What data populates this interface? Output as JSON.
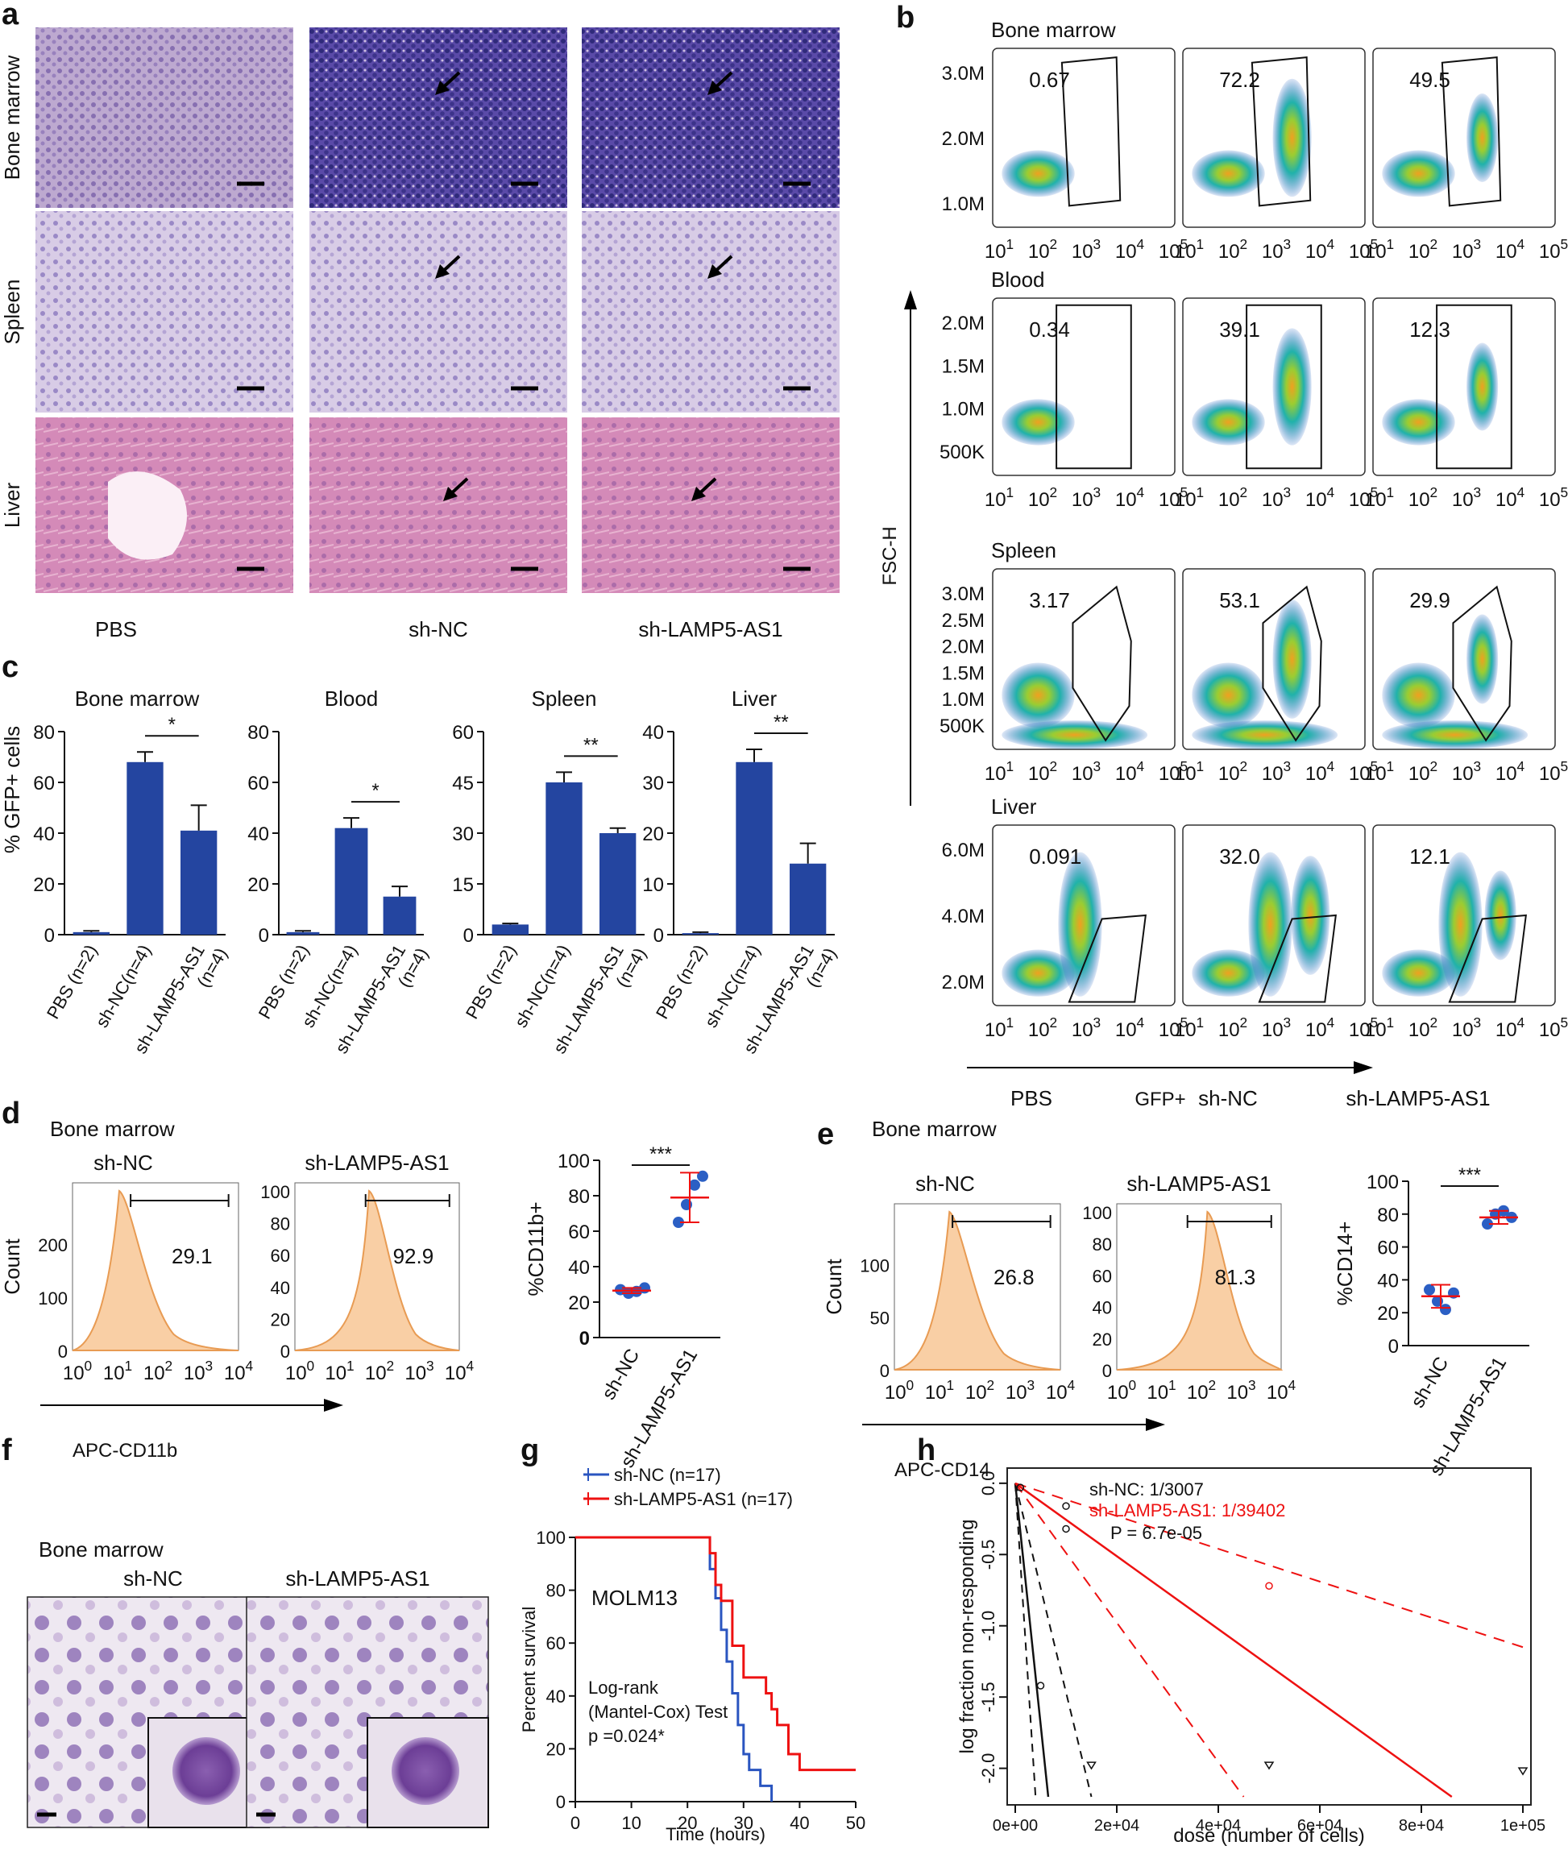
{
  "panels": {
    "a": "a",
    "b": "b",
    "c": "c",
    "d": "d",
    "e": "e",
    "f": "f",
    "g": "g",
    "h": "h"
  },
  "colors": {
    "bar": "#2445a0",
    "pbs_tissue": "#b9a3cc",
    "liver": "#d07fae",
    "hist": "#f9cfa5",
    "hist_line": "#e89b53",
    "red": "#e11",
    "blue": "#2a55c0",
    "dot": "#2b5fc4"
  },
  "a": {
    "rows": [
      "Bone marrow",
      "Spleen",
      "Liver"
    ],
    "cols": [
      "PBS",
      "sh-NC",
      "sh-LAMP5-AS1"
    ]
  },
  "b": {
    "groups": [
      {
        "title": "Bone marrow",
        "yticks": [
          "3.0M",
          "2.0M",
          "1.0M"
        ],
        "values": [
          "0.67",
          "72.2",
          "49.5"
        ]
      },
      {
        "title": "Blood",
        "yticks": [
          "2.0M",
          "1.5M",
          "1.0M",
          "500K"
        ],
        "values": [
          "0.34",
          "39.1",
          "12.3"
        ]
      },
      {
        "title": "Spleen",
        "yticks": [
          "3.0M",
          "2.5M",
          "2.0M",
          "1.5M",
          "1.0M",
          "500K"
        ],
        "values": [
          "3.17",
          "53.1",
          "29.9"
        ]
      },
      {
        "title": "Liver",
        "yticks": [
          "6.0M",
          "4.0M",
          "2.0M"
        ],
        "values": [
          "0.091",
          "32.0",
          "12.1"
        ]
      }
    ],
    "xticks": [
      "1",
      "2",
      "3",
      "4",
      "5"
    ],
    "tick_base": "10",
    "ylabel": "FSC-H",
    "xlabel": "GFP+",
    "cols": [
      "PBS",
      "sh-NC",
      "sh-LAMP5-AS1"
    ]
  },
  "c": {
    "ylabel": "% GFP+ cells",
    "categories": [
      "PBS (n=2)",
      "sh-NC(n=4)",
      "sh-LAMP5-AS1",
      "(n=4)"
    ],
    "categories_alt": [
      "PBS (n=2)",
      "sh-NC(n=4)",
      "sh-LAMP5-AS1 (n=4)"
    ],
    "chart_data": [
      {
        "type": "bar",
        "title": "Bone marrow",
        "categories": [
          "PBS (n=2)",
          "sh-NC(n=4)",
          "sh-LAMP5-AS1 (n=4)"
        ],
        "values": [
          1,
          68,
          41
        ],
        "errors": [
          0.5,
          4,
          10
        ],
        "ylim": [
          0,
          80
        ],
        "yticks": [
          "0",
          "20",
          "40",
          "60",
          "80"
        ],
        "sig": "*"
      },
      {
        "type": "bar",
        "title": "Blood",
        "categories": [
          "PBS (n=2)",
          "sh-NC(n=4)",
          "sh-LAMP5-AS1 (n=4)"
        ],
        "values": [
          1,
          42,
          15
        ],
        "errors": [
          0.5,
          4,
          4
        ],
        "ylim": [
          0,
          80
        ],
        "yticks": [
          "0",
          "20",
          "40",
          "60",
          "80"
        ],
        "sig": "*"
      },
      {
        "type": "bar",
        "title": "Spleen",
        "categories": [
          "PBS (n=2)",
          "sh-NC(n=4)",
          "sh-LAMP5-AS1 (n=4)"
        ],
        "values": [
          3,
          45,
          30
        ],
        "errors": [
          0.3,
          3,
          1.5
        ],
        "ylim": [
          0,
          60
        ],
        "yticks": [
          "0",
          "15",
          "30",
          "45",
          "60"
        ],
        "sig": "**"
      },
      {
        "type": "bar",
        "title": "Liver",
        "categories": [
          "PBS (n=2)",
          "sh-NC(n=4)",
          "sh-LAMP5-AS1 (n=4)"
        ],
        "values": [
          0.3,
          34,
          14
        ],
        "errors": [
          0.2,
          2.5,
          4
        ],
        "ylim": [
          0,
          40
        ],
        "yticks": [
          "0",
          "10",
          "20",
          "30",
          "40"
        ],
        "sig": "**"
      }
    ]
  },
  "d": {
    "title": "Bone marrow",
    "hist": [
      {
        "label": "sh-NC",
        "value": "29.1",
        "yticks": [
          "0",
          "100",
          "200",
          "300"
        ]
      },
      {
        "label": "sh-LAMP5-AS1",
        "value": "92.9",
        "yticks": [
          "0",
          "20",
          "40",
          "60",
          "80",
          "100"
        ]
      }
    ],
    "ylabel": "Count",
    "xticks": [
      "0",
      "1",
      "2",
      "3",
      "4"
    ],
    "tick_base": "10",
    "xlabel": "APC-CD11b",
    "scatter": {
      "type": "scatter",
      "ylabel": "%CD11b+",
      "yticks": [
        "0",
        "20",
        "40",
        "60",
        "80",
        "100"
      ],
      "categories": [
        "sh-NC",
        "sh-LAMP5-AS1"
      ],
      "series": [
        {
          "values": [
            27,
            25,
            26,
            28
          ]
        },
        {
          "values": [
            65,
            75,
            86,
            91
          ]
        }
      ],
      "means": [
        26.5,
        79
      ],
      "sds": [
        1.5,
        14
      ],
      "sig": "***",
      "ylim": [
        0,
        100
      ]
    }
  },
  "e": {
    "title": "Bone marrow",
    "hist": [
      {
        "label": "sh-NC",
        "value": "26.8",
        "yticks": [
          "0",
          "50",
          "100",
          "150"
        ]
      },
      {
        "label": "sh-LAMP5-AS1",
        "value": "81.3",
        "yticks": [
          "0",
          "20",
          "40",
          "60",
          "80",
          "100"
        ]
      }
    ],
    "ylabel": "Count",
    "xticks": [
      "0",
      "1",
      "2",
      "3",
      "4"
    ],
    "tick_base": "10",
    "xlabel": "APC-CD14",
    "scatter": {
      "type": "scatter",
      "ylabel": "%CD14+",
      "yticks": [
        "0",
        "20",
        "40",
        "60",
        "80",
        "100"
      ],
      "categories": [
        "sh-NC",
        "sh-LAMP5-AS1"
      ],
      "series": [
        {
          "values": [
            34,
            27,
            22,
            32
          ]
        },
        {
          "values": [
            74,
            80,
            82,
            78
          ]
        }
      ],
      "means": [
        30,
        78
      ],
      "sds": [
        7,
        4
      ],
      "sig": "***",
      "ylim": [
        0,
        100
      ]
    }
  },
  "f": {
    "title": "Bone marrow",
    "labels": [
      "sh-NC",
      "sh-LAMP5-AS1"
    ]
  },
  "g": {
    "chart_data": {
      "type": "line",
      "ylabel": "Percent survival",
      "xlabel": "Time (hours)",
      "xticks": [
        "0",
        "10",
        "20",
        "30",
        "40",
        "50"
      ],
      "yticks": [
        "0",
        "20",
        "40",
        "60",
        "80",
        "100"
      ],
      "xlim": [
        0,
        50
      ],
      "ylim": [
        0,
        100
      ],
      "series": [
        {
          "name": "sh-NC (n=17)",
          "x": [
            0,
            24,
            25,
            26,
            27,
            28,
            29,
            30,
            31,
            33,
            35
          ],
          "y": [
            100,
            88,
            77,
            65,
            53,
            41,
            29,
            18,
            12,
            6,
            0
          ]
        },
        {
          "name": "sh-LAMP5-AS1 (n=17)",
          "x": [
            0,
            24,
            25,
            26,
            28,
            30,
            33,
            34,
            35,
            36,
            38,
            40,
            50
          ],
          "y": [
            100,
            94,
            82,
            76,
            59,
            47,
            47,
            41,
            35,
            29,
            18,
            12,
            12
          ]
        }
      ]
    },
    "label": "MOLM13",
    "test": [
      "Log-rank",
      "(Mantel-Cox) Test",
      "p =0.024*"
    ]
  },
  "h": {
    "chart_data": {
      "type": "line",
      "ylabel": "log fraction non-responding",
      "xlabel": "dose (number of cells)",
      "xticks": [
        "0e+00",
        "2e+04",
        "4e+04",
        "6e+04",
        "8e+04",
        "1e+05"
      ],
      "yticks": [
        "0.0",
        "-0.5",
        "-1.0",
        "-1.5",
        "-2.0"
      ],
      "xlim": [
        0,
        100000
      ],
      "ylim": [
        -2.2,
        0.05
      ],
      "series": [
        {
          "name": "sh-NC: 1/3007"
        },
        {
          "name": "sh-LAMP5-AS1: 1/39402"
        }
      ]
    },
    "p": "P = 6.7e-05"
  }
}
